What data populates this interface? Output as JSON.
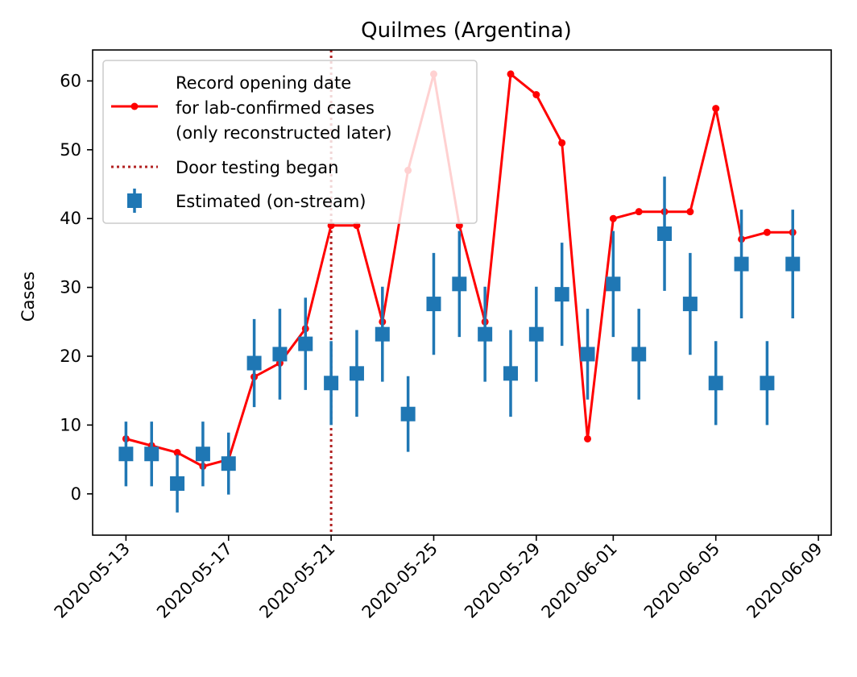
{
  "chart_data": {
    "type": "line",
    "title": "Quilmes (Argentina)",
    "xlabel": "",
    "ylabel": "Cases",
    "ylim": [
      -6,
      64.5
    ],
    "yticks": [
      0,
      10,
      20,
      30,
      40,
      50,
      60
    ],
    "xlim_day_offsets": [
      -1.3,
      27.5
    ],
    "xticks": [
      {
        "day": 0,
        "label": "2020-05-13"
      },
      {
        "day": 4,
        "label": "2020-05-17"
      },
      {
        "day": 8,
        "label": "2020-05-21"
      },
      {
        "day": 12,
        "label": "2020-05-25"
      },
      {
        "day": 16,
        "label": "2020-05-29"
      },
      {
        "day": 19,
        "label": "2020-06-01"
      },
      {
        "day": 23,
        "label": "2020-06-05"
      },
      {
        "day": 27,
        "label": "2020-06-09"
      }
    ],
    "series": [
      {
        "name": "Record opening date\nfor lab-confirmed cases\n(only reconstructed later)",
        "legend_lines": [
          "Record opening date",
          "for lab-confirmed cases",
          "(only reconstructed later)"
        ],
        "color": "#ff0000",
        "x": [
          0,
          1,
          2,
          3,
          4,
          5,
          6,
          7,
          8,
          9,
          10,
          11,
          12,
          13,
          14,
          15,
          16,
          17,
          18,
          19,
          20,
          21,
          22,
          23,
          24,
          25,
          26
        ],
        "values": [
          8,
          7,
          6,
          4,
          5,
          17,
          19,
          24,
          39,
          39,
          25,
          47,
          61,
          39,
          25,
          61,
          58,
          51,
          8,
          40,
          41,
          41,
          41,
          56,
          37,
          38,
          38
        ]
      },
      {
        "name": "Estimated (on-stream)",
        "color": "#1f77b4",
        "x": [
          0,
          1,
          2,
          3,
          4,
          5,
          6,
          7,
          8,
          9,
          10,
          11,
          12,
          13,
          14,
          15,
          16,
          17,
          18,
          19,
          20,
          21,
          22,
          23,
          24,
          25,
          26
        ],
        "values": [
          5.8,
          5.8,
          1.5,
          5.8,
          4.4,
          19,
          20.3,
          21.8,
          16.1,
          17.5,
          23.2,
          11.6,
          27.6,
          30.5,
          23.2,
          17.5,
          23.2,
          29,
          20.3,
          30.5,
          20.3,
          37.8,
          27.6,
          16.1,
          33.4,
          16.1,
          33.4
        ],
        "yerr": [
          4.7,
          4.7,
          4.2,
          4.7,
          4.5,
          6.4,
          6.6,
          6.7,
          6.1,
          6.3,
          6.9,
          5.5,
          7.4,
          7.7,
          6.9,
          6.3,
          6.9,
          7.5,
          6.6,
          7.7,
          6.6,
          8.3,
          7.4,
          6.1,
          7.9,
          6.1,
          7.9
        ]
      }
    ],
    "vline": {
      "name": "Door testing began",
      "day": 8,
      "color": "#b22222"
    },
    "legend_position": "upper-left"
  }
}
